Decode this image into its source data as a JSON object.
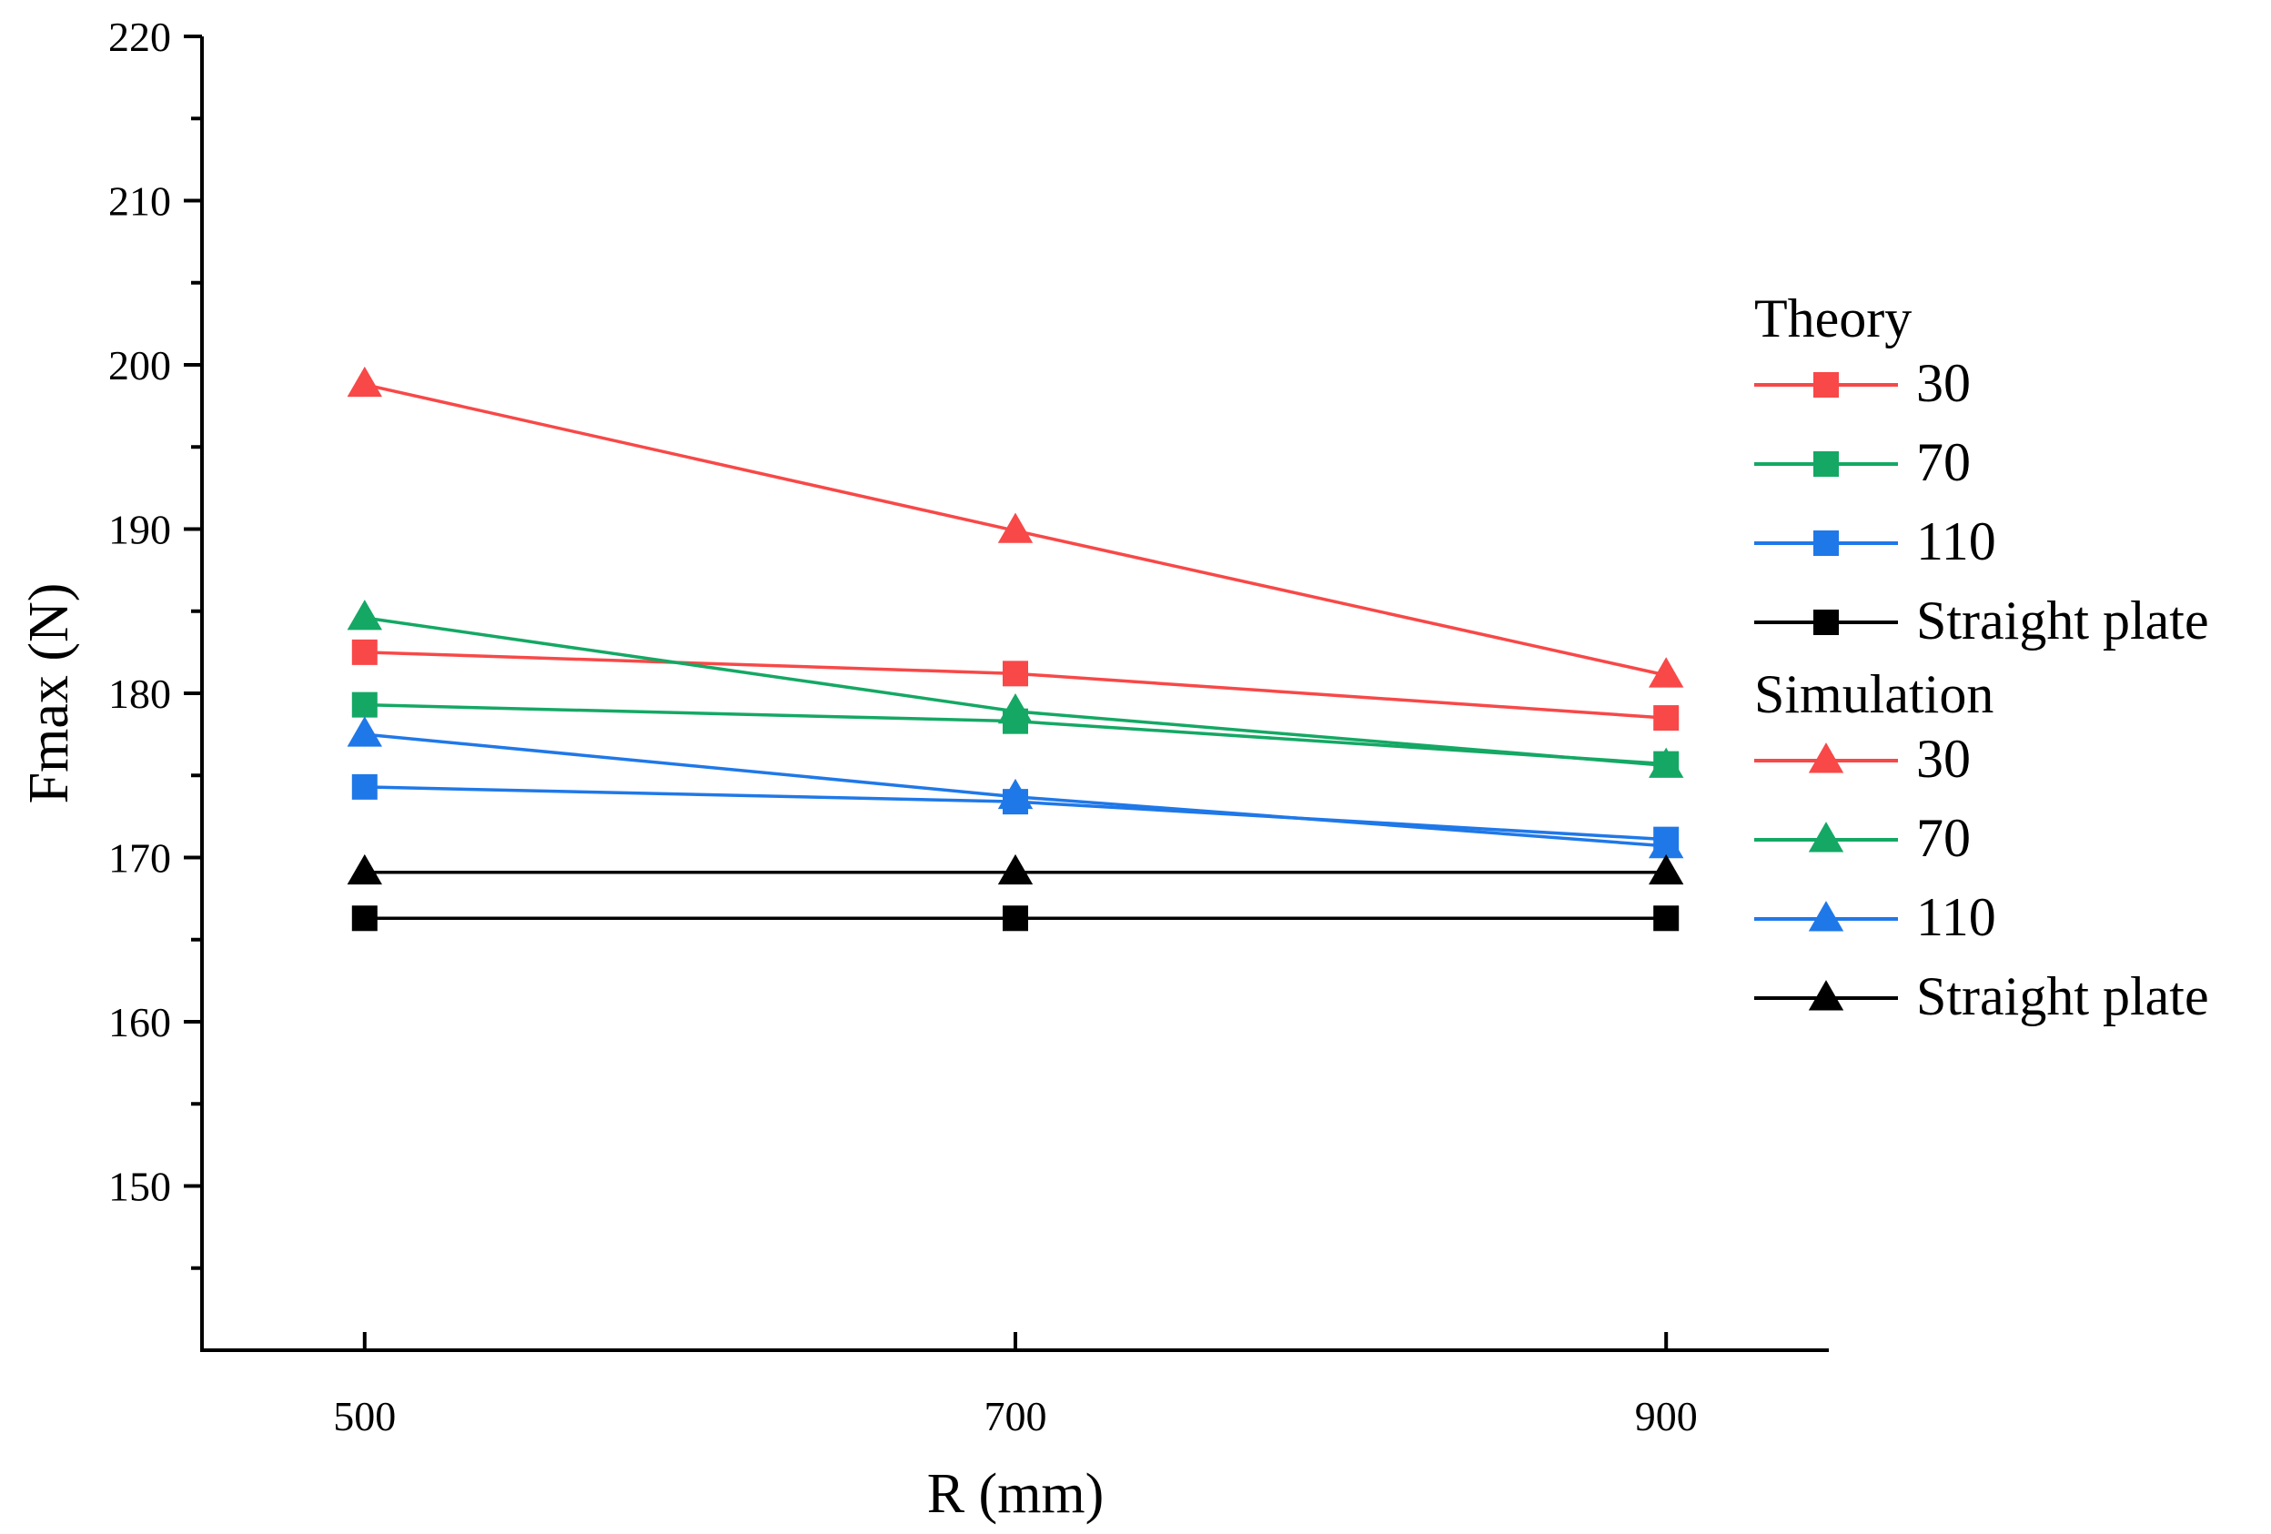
{
  "chart_data": {
    "type": "line",
    "title": "",
    "xlabel": "R (mm)",
    "ylabel": "Fmax (N)",
    "x": [
      500,
      700,
      900
    ],
    "x_tick_labels": [
      "500",
      "700",
      "900"
    ],
    "xlim": [
      450,
      950
    ],
    "ylim": [
      140,
      220
    ],
    "y_ticks": [
      150,
      160,
      170,
      180,
      190,
      200,
      210,
      220
    ],
    "y_tick_labels": [
      "150",
      "160",
      "170",
      "180",
      "190",
      "200",
      "210",
      "220"
    ],
    "grid": false,
    "legend_position": "right",
    "legend_groups": [
      {
        "title": "Theory",
        "marker": "square",
        "series": [
          {
            "name": "30",
            "color": "#f84848",
            "values": [
              182.5,
              181.2,
              178.5
            ]
          },
          {
            "name": "70",
            "color": "#14a864",
            "values": [
              179.3,
              178.3,
              175.7
            ]
          },
          {
            "name": "110",
            "color": "#1f78e8",
            "values": [
              174.3,
              173.4,
              171.1
            ]
          },
          {
            "name": "Straight plate",
            "color": "#000000",
            "values": [
              166.3,
              166.3,
              166.3
            ]
          }
        ]
      },
      {
        "title": "Simulation",
        "marker": "triangle",
        "series": [
          {
            "name": "30",
            "color": "#f84848",
            "values": [
              198.8,
              189.9,
              181.1
            ]
          },
          {
            "name": "70",
            "color": "#14a864",
            "values": [
              184.6,
              178.9,
              175.6
            ]
          },
          {
            "name": "110",
            "color": "#1f78e8",
            "values": [
              177.5,
              173.7,
              170.7
            ]
          },
          {
            "name": "Straight plate",
            "color": "#000000",
            "values": [
              169.1,
              169.1,
              169.1
            ]
          }
        ]
      }
    ]
  }
}
